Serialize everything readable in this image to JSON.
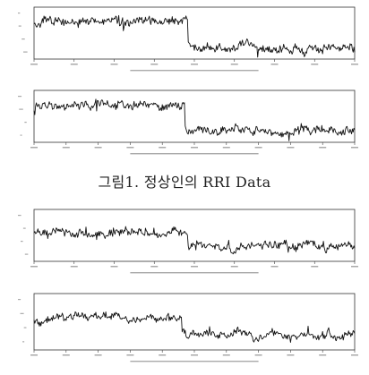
{
  "figure": {
    "caption": "그림1. 정상인의 RRI Data"
  },
  "chart_data": [
    {
      "type": "line",
      "note_legibility": "tick labels and axis captions are illegible in the source scan",
      "x_ticks_count": 8,
      "y_level_before_drop": 0.72,
      "y_level_after_drop": 0.22,
      "drop_at_fraction": 0.48,
      "noise": 0.12,
      "seed": 11
    },
    {
      "type": "line",
      "x_ticks_count": 10,
      "y_level_before_drop": 0.7,
      "y_level_after_drop": 0.24,
      "drop_at_fraction": 0.47,
      "noise": 0.11,
      "seed": 23
    },
    {
      "type": "line",
      "x_ticks_count": 8,
      "y_level_before_drop": 0.55,
      "y_level_after_drop": 0.28,
      "drop_at_fraction": 0.48,
      "noise": 0.1,
      "seed": 37
    },
    {
      "type": "line",
      "x_ticks_count": 10,
      "y_level_before_drop": 0.55,
      "y_level_after_drop": 0.26,
      "drop_at_fraction": 0.46,
      "noise": 0.1,
      "seed": 51
    }
  ]
}
